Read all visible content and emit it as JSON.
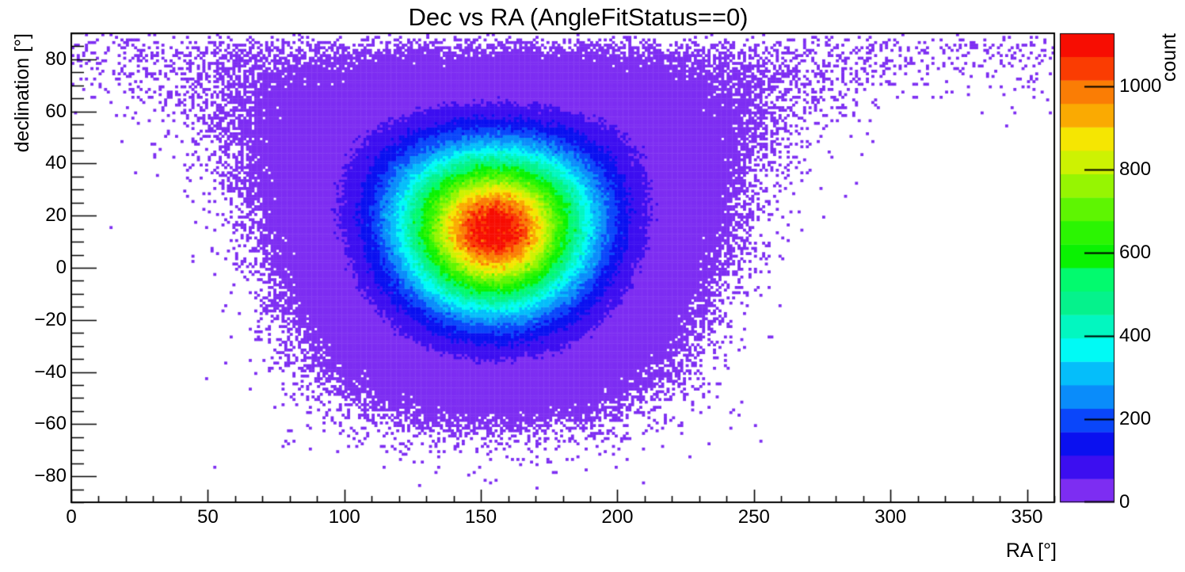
{
  "chart_data": {
    "type": "heatmap",
    "title": "Dec vs RA (AngleFitStatus==0)",
    "xlabel": "RA [°]",
    "ylabel": "declination [°]",
    "zlabel": "count",
    "x_range": [
      0,
      360
    ],
    "y_range": [
      -90,
      90
    ],
    "z_range": [
      0,
      1128
    ],
    "grid": false,
    "n_color_levels": 20,
    "palette": [
      "#7d2df2",
      "#3c0ef0",
      "#0a10f0",
      "#0a46fa",
      "#0a8cfa",
      "#05befa",
      "#00faf5",
      "#02f7c0",
      "#05f28c",
      "#02fa6e",
      "#0af202",
      "#2bf502",
      "#5ef502",
      "#96f502",
      "#cdf202",
      "#f5e602",
      "#faaa02",
      "#fa7d05",
      "#fa3c02",
      "#f70d02"
    ],
    "x_ticks": [
      {
        "v": 0,
        "label": "0"
      },
      {
        "v": 50,
        "label": "50"
      },
      {
        "v": 100,
        "label": "100"
      },
      {
        "v": 150,
        "label": "150"
      },
      {
        "v": 200,
        "label": "200"
      },
      {
        "v": 250,
        "label": "250"
      },
      {
        "v": 300,
        "label": "300"
      },
      {
        "v": 350,
        "label": "350"
      }
    ],
    "x_minor_step": 10,
    "y_ticks": [
      {
        "v": 80,
        "label": "80"
      },
      {
        "v": 60,
        "label": "60"
      },
      {
        "v": 40,
        "label": "40"
      },
      {
        "v": 20,
        "label": "20"
      },
      {
        "v": 0,
        "label": "0"
      },
      {
        "v": -20,
        "label": "−20"
      },
      {
        "v": -40,
        "label": "−40"
      },
      {
        "v": -60,
        "label": "−60"
      },
      {
        "v": -80,
        "label": "−80"
      }
    ],
    "y_minor_step": 5,
    "z_ticks": [
      {
        "v": 0,
        "label": "0"
      },
      {
        "v": 200,
        "label": "200"
      },
      {
        "v": 400,
        "label": "400"
      },
      {
        "v": 600,
        "label": "600"
      },
      {
        "v": 800,
        "label": "800"
      },
      {
        "v": 1000,
        "label": "1000"
      }
    ],
    "bin_width_deg": 1,
    "distribution": {
      "model": "gaussian_on_sphere",
      "center_ra_deg": 155,
      "center_dec_deg": 17,
      "sigma_deg": 22,
      "peak_count": 1180,
      "max_bin_count": 1128,
      "solid_angle_weight": "cos_dec",
      "sampling": "poisson"
    }
  }
}
